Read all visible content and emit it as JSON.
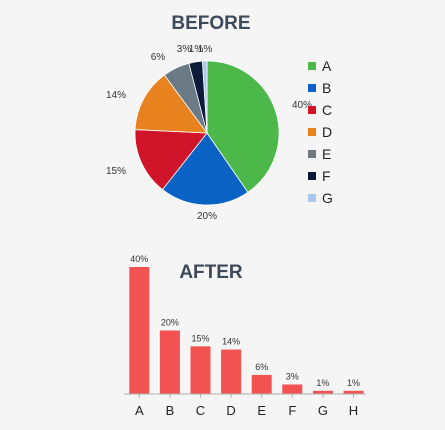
{
  "chart_data": [
    {
      "type": "pie",
      "title": "BEFORE",
      "categories": [
        "A",
        "B",
        "C",
        "D",
        "E",
        "F",
        "G"
      ],
      "values": [
        40,
        20,
        15,
        14,
        6,
        3,
        1
      ],
      "labels": [
        "40%",
        "20%",
        "15%",
        "14%",
        "6%",
        "3%",
        "1%"
      ],
      "extra_label": "1%",
      "colors": [
        "#4cb84a",
        "#0a63c4",
        "#d0142a",
        "#e8821e",
        "#6c7a86",
        "#0c1a3c",
        "#a9c8ee"
      ],
      "legend_position": "right"
    },
    {
      "type": "bar",
      "title": "AFTER",
      "categories": [
        "A",
        "B",
        "C",
        "D",
        "E",
        "F",
        "G",
        "H"
      ],
      "values": [
        40,
        20,
        15,
        14,
        6,
        3,
        1,
        1
      ],
      "labels": [
        "40%",
        "20%",
        "15%",
        "14%",
        "6%",
        "3%",
        "1%",
        "1%"
      ],
      "color": "#f25252",
      "ylim": [
        0,
        40
      ],
      "grid": false
    }
  ]
}
